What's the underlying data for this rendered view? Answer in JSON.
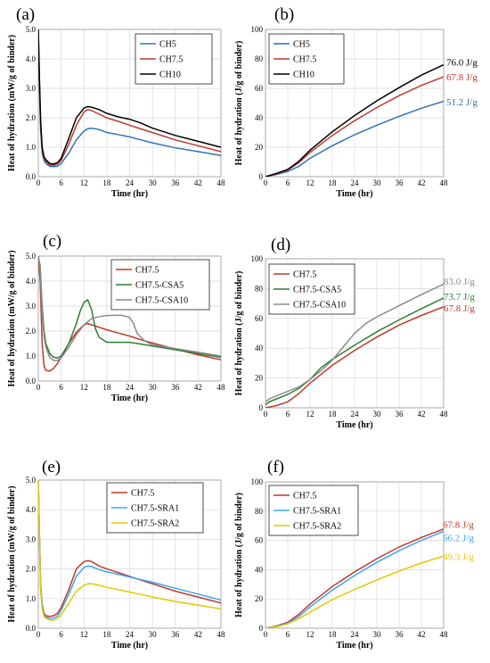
{
  "chart_data": [
    {
      "panel": "(a)",
      "type": "line",
      "xlabel": "Time (hr)",
      "ylabel": "Heat of hydration (mW/g of binder)",
      "xlim": [
        0,
        48
      ],
      "ylim": [
        0,
        5
      ],
      "xticks": [
        0,
        6,
        12,
        18,
        24,
        30,
        36,
        42,
        48
      ],
      "yticks": [
        0,
        1,
        2,
        3,
        4,
        5
      ],
      "ytick_labels": [
        "0.0",
        "1.0",
        "2.0",
        "3.0",
        "4.0",
        "5.0"
      ],
      "grid": true,
      "legend": "top-right",
      "series": [
        {
          "name": "CH5",
          "color": "#2e74b5",
          "x": [
            0,
            0.3,
            0.6,
            1,
            1.5,
            2,
            3,
            4,
            5,
            6,
            8,
            10,
            12,
            13,
            14,
            16,
            18,
            21,
            24,
            27,
            30,
            36,
            42,
            48
          ],
          "y": [
            5,
            3.0,
            1.6,
            0.8,
            0.55,
            0.45,
            0.35,
            0.34,
            0.35,
            0.45,
            0.8,
            1.25,
            1.55,
            1.63,
            1.65,
            1.6,
            1.5,
            1.43,
            1.35,
            1.25,
            1.15,
            0.98,
            0.85,
            0.72
          ]
        },
        {
          "name": "CH7.5",
          "color": "#c0392b",
          "x": [
            0,
            0.3,
            0.6,
            1,
            1.5,
            2,
            3,
            4,
            5,
            6,
            8,
            10,
            12,
            13,
            14,
            16,
            18,
            21,
            24,
            27,
            30,
            36,
            42,
            48
          ],
          "y": [
            5,
            3.2,
            1.8,
            0.9,
            0.62,
            0.52,
            0.4,
            0.38,
            0.42,
            0.55,
            1.1,
            1.75,
            2.2,
            2.28,
            2.25,
            2.12,
            2.0,
            1.88,
            1.75,
            1.62,
            1.5,
            1.25,
            1.05,
            0.85
          ]
        },
        {
          "name": "CH10",
          "color": "#000000",
          "x": [
            0,
            0.3,
            0.6,
            1,
            1.5,
            2,
            3,
            4,
            5,
            6,
            8,
            10,
            12,
            13,
            14,
            16,
            18,
            21,
            24,
            27,
            30,
            36,
            42,
            48
          ],
          "y": [
            5,
            3.3,
            1.9,
            1.0,
            0.68,
            0.58,
            0.45,
            0.43,
            0.48,
            0.62,
            1.3,
            2.0,
            2.33,
            2.38,
            2.36,
            2.28,
            2.15,
            2.03,
            1.95,
            1.82,
            1.65,
            1.4,
            1.2,
            1.0
          ]
        }
      ]
    },
    {
      "panel": "(b)",
      "type": "line",
      "xlabel": "Time (hr)",
      "ylabel": "Heat of hydration (J/g of binder)",
      "xlim": [
        0,
        48
      ],
      "ylim": [
        0,
        100
      ],
      "xticks": [
        0,
        6,
        12,
        18,
        24,
        30,
        36,
        42,
        48
      ],
      "yticks": [
        0,
        20,
        40,
        60,
        80,
        100
      ],
      "ytick_labels": [
        "0",
        "20",
        "40",
        "60",
        "80",
        "100"
      ],
      "grid": true,
      "legend": "top-left",
      "series": [
        {
          "name": "CH5",
          "color": "#2e74b5",
          "x": [
            0,
            3,
            6,
            9,
            12,
            18,
            24,
            30,
            36,
            42,
            48
          ],
          "y": [
            0,
            1.5,
            3.5,
            7,
            12.5,
            21,
            28.5,
            35,
            41,
            46.5,
            51.2
          ]
        },
        {
          "name": "CH7.5",
          "color": "#c0392b",
          "x": [
            0,
            3,
            6,
            9,
            12,
            18,
            24,
            30,
            36,
            42,
            48
          ],
          "y": [
            0,
            2,
            4.5,
            9.5,
            16.5,
            28,
            38,
            47,
            55,
            62,
            67.8
          ]
        },
        {
          "name": "CH10",
          "color": "#000000",
          "x": [
            0,
            3,
            6,
            9,
            12,
            18,
            24,
            30,
            36,
            42,
            48
          ],
          "y": [
            0,
            2.3,
            5,
            10.5,
            18,
            30.5,
            41.5,
            51.5,
            60.5,
            69,
            76.0
          ]
        }
      ],
      "annotations": [
        {
          "text": "76.0 J/g",
          "color": "#000000",
          "y": 78
        },
        {
          "text": "67.8 J/g",
          "color": "#c0392b",
          "y": 68
        },
        {
          "text": "51.2 J/g",
          "color": "#2e74b5",
          "y": 51
        }
      ]
    },
    {
      "panel": "(c)",
      "type": "line",
      "xlabel": "Time (hr)",
      "ylabel": "Heat of hydration (mW/g of binder)",
      "xlim": [
        0,
        48
      ],
      "ylim": [
        0,
        5
      ],
      "xticks": [
        0,
        6,
        12,
        18,
        24,
        30,
        36,
        42,
        48
      ],
      "yticks": [
        0,
        1,
        2,
        3,
        4,
        5
      ],
      "ytick_labels": [
        "0.0",
        "1.0",
        "2.0",
        "3.0",
        "4.0",
        "5.0"
      ],
      "grid": true,
      "legend": "top-right",
      "series": [
        {
          "name": "CH7.5",
          "color": "#c0392b",
          "x": [
            0,
            0.5,
            1,
            1.5,
            2,
            3,
            4,
            5,
            6,
            8,
            10,
            12,
            13,
            14,
            16,
            18,
            21,
            24,
            27,
            30,
            36,
            42,
            48
          ],
          "y": [
            5,
            4.0,
            1.5,
            0.6,
            0.42,
            0.4,
            0.5,
            0.7,
            0.95,
            1.5,
            1.95,
            2.25,
            2.3,
            2.25,
            2.15,
            2.05,
            1.92,
            1.8,
            1.65,
            1.52,
            1.28,
            1.05,
            0.85
          ]
        },
        {
          "name": "CH7.5-CSA5",
          "color": "#2e7d32",
          "x": [
            0,
            0.5,
            1,
            1.5,
            2,
            3,
            4,
            5,
            6,
            8,
            10,
            11,
            12,
            13,
            14,
            15,
            16,
            18,
            21,
            24,
            27,
            30,
            36,
            42,
            48
          ],
          "y": [
            5,
            4.6,
            3.0,
            2.0,
            1.5,
            1.1,
            0.95,
            0.92,
            1.0,
            1.5,
            2.3,
            2.8,
            3.15,
            3.25,
            2.85,
            2.1,
            1.75,
            1.55,
            1.55,
            1.55,
            1.48,
            1.4,
            1.25,
            1.1,
            0.95
          ]
        },
        {
          "name": "CH7.5-CSA10",
          "color": "#8c8c8c",
          "x": [
            0,
            0.5,
            1,
            1.5,
            2,
            3,
            4,
            5,
            6,
            8,
            10,
            12,
            14,
            16,
            18,
            20,
            22,
            24,
            25,
            26,
            28,
            30,
            36,
            42,
            48
          ],
          "y": [
            5,
            4.5,
            2.7,
            1.8,
            1.35,
            0.95,
            0.82,
            0.82,
            0.92,
            1.35,
            1.85,
            2.25,
            2.5,
            2.58,
            2.62,
            2.63,
            2.63,
            2.55,
            2.3,
            1.9,
            1.6,
            1.45,
            1.3,
            1.15,
            1.0
          ]
        }
      ]
    },
    {
      "panel": "(d)",
      "type": "line",
      "xlabel": "Time (hr)",
      "ylabel": "Heat of hydration (J/g of binder)",
      "xlim": [
        0,
        48
      ],
      "ylim": [
        0,
        100
      ],
      "xticks": [
        0,
        6,
        12,
        18,
        24,
        30,
        36,
        42,
        48
      ],
      "yticks": [
        0,
        20,
        40,
        60,
        80,
        100
      ],
      "ytick_labels": [
        "0",
        "20",
        "40",
        "60",
        "80",
        "100"
      ],
      "grid": true,
      "legend": "top-left",
      "series": [
        {
          "name": "CH7.5",
          "color": "#c0392b",
          "x": [
            0,
            3,
            6,
            9,
            12,
            18,
            24,
            30,
            36,
            42,
            48
          ],
          "y": [
            0,
            1.5,
            4,
            9.5,
            16.5,
            28.5,
            38.5,
            47.5,
            55.5,
            62,
            67.8
          ]
        },
        {
          "name": "CH7.5-CSA5",
          "color": "#2e7d32",
          "x": [
            0,
            1,
            3,
            6,
            9,
            12,
            15,
            18,
            24,
            30,
            36,
            42,
            48
          ],
          "y": [
            2,
            4,
            6,
            9,
            13,
            19,
            27,
            32.5,
            42,
            51,
            59,
            66.5,
            73.7
          ]
        },
        {
          "name": "CH7.5-CSA10",
          "color": "#8c8c8c",
          "x": [
            0,
            1,
            3,
            6,
            9,
            12,
            15,
            18,
            21,
            24,
            27,
            30,
            36,
            42,
            48
          ],
          "y": [
            4,
            6,
            8,
            11,
            14,
            19,
            25,
            32,
            41,
            50,
            56.5,
            61,
            68.5,
            76,
            83.0
          ]
        }
      ],
      "annotations": [
        {
          "text": "83.0 J/g",
          "color": "#8c8c8c",
          "y": 85
        },
        {
          "text": "73.7 J/g",
          "color": "#2e7d32",
          "y": 75
        },
        {
          "text": "67.8 J/g",
          "color": "#c0392b",
          "y": 67
        }
      ]
    },
    {
      "panel": "(e)",
      "type": "line",
      "xlabel": "Time (hr)",
      "ylabel": "Heat of hydration (mW/g of binder)",
      "xlim": [
        0,
        48
      ],
      "ylim": [
        0,
        5
      ],
      "xticks": [
        0,
        6,
        12,
        18,
        24,
        30,
        36,
        42,
        48
      ],
      "yticks": [
        0,
        1,
        2,
        3,
        4,
        5
      ],
      "ytick_labels": [
        "0.0",
        "1.0",
        "2.0",
        "3.0",
        "4.0",
        "5.0"
      ],
      "grid": true,
      "legend": "top-right",
      "series": [
        {
          "name": "CH7.5",
          "color": "#c0392b",
          "x": [
            0,
            0.3,
            0.6,
            1,
            1.5,
            2,
            3,
            4,
            5,
            6,
            8,
            10,
            12,
            13,
            14,
            16,
            18,
            21,
            24,
            27,
            30,
            36,
            42,
            48
          ],
          "y": [
            5,
            3.2,
            1.5,
            0.8,
            0.5,
            0.42,
            0.4,
            0.42,
            0.5,
            0.7,
            1.3,
            2.0,
            2.25,
            2.28,
            2.25,
            2.1,
            2.0,
            1.88,
            1.75,
            1.62,
            1.5,
            1.25,
            1.05,
            0.85
          ]
        },
        {
          "name": "CH7.5-SRA1",
          "color": "#3da5f4",
          "x": [
            0,
            0.3,
            0.6,
            1,
            1.5,
            2,
            3,
            4,
            5,
            6,
            8,
            10,
            12,
            13,
            14,
            16,
            18,
            21,
            24,
            27,
            30,
            36,
            42,
            48
          ],
          "y": [
            5,
            3.1,
            1.4,
            0.75,
            0.45,
            0.38,
            0.33,
            0.33,
            0.4,
            0.6,
            1.15,
            1.75,
            2.05,
            2.1,
            2.08,
            1.98,
            1.9,
            1.82,
            1.73,
            1.64,
            1.55,
            1.35,
            1.15,
            0.95
          ]
        },
        {
          "name": "CH7.5-SRA2",
          "color": "#e6c700",
          "x": [
            0,
            0.3,
            0.6,
            1,
            1.5,
            2,
            3,
            4,
            5,
            6,
            8,
            10,
            12,
            13,
            14,
            16,
            18,
            21,
            24,
            27,
            30,
            36,
            42,
            48
          ],
          "y": [
            5,
            3.0,
            1.3,
            0.65,
            0.4,
            0.33,
            0.27,
            0.27,
            0.32,
            0.45,
            0.85,
            1.25,
            1.45,
            1.5,
            1.5,
            1.45,
            1.38,
            1.3,
            1.22,
            1.14,
            1.05,
            0.9,
            0.78,
            0.65
          ]
        }
      ]
    },
    {
      "panel": "(f)",
      "type": "line",
      "xlabel": "Time (hr)",
      "ylabel": "Heat of hydration (J/g of binder)",
      "xlim": [
        0,
        48
      ],
      "ylim": [
        0,
        100
      ],
      "xticks": [
        0,
        6,
        12,
        18,
        24,
        30,
        36,
        42,
        48
      ],
      "yticks": [
        0,
        20,
        40,
        60,
        80,
        100
      ],
      "ytick_labels": [
        "0",
        "20",
        "40",
        "60",
        "80",
        "100"
      ],
      "grid": true,
      "legend": "top-left",
      "series": [
        {
          "name": "CH7.5",
          "color": "#c0392b",
          "x": [
            0,
            3,
            6,
            9,
            12,
            18,
            24,
            30,
            36,
            42,
            48
          ],
          "y": [
            0,
            1.5,
            4,
            9.5,
            16.5,
            28.5,
            38.5,
            47.5,
            55.5,
            62,
            67.8
          ]
        },
        {
          "name": "CH7.5-SRA1",
          "color": "#3da5f4",
          "x": [
            0,
            3,
            6,
            9,
            12,
            18,
            24,
            30,
            36,
            42,
            48
          ],
          "y": [
            0,
            1.2,
            3.5,
            8,
            14.5,
            26,
            36,
            45,
            53,
            60,
            66.2
          ]
        },
        {
          "name": "CH7.5-SRA2",
          "color": "#e6c700",
          "x": [
            0,
            3,
            6,
            9,
            12,
            18,
            24,
            30,
            36,
            42,
            48
          ],
          "y": [
            0,
            1,
            3,
            6.5,
            11,
            19.5,
            26.5,
            33,
            39,
            44.5,
            49.3
          ]
        }
      ],
      "annotations": [
        {
          "text": "67.8 J/g",
          "color": "#c0392b",
          "y": 71
        },
        {
          "text": "66.2 J/g",
          "color": "#3da5f4",
          "y": 62
        },
        {
          "text": "49.3 J/g",
          "color": "#e6c700",
          "y": 49
        }
      ]
    }
  ]
}
